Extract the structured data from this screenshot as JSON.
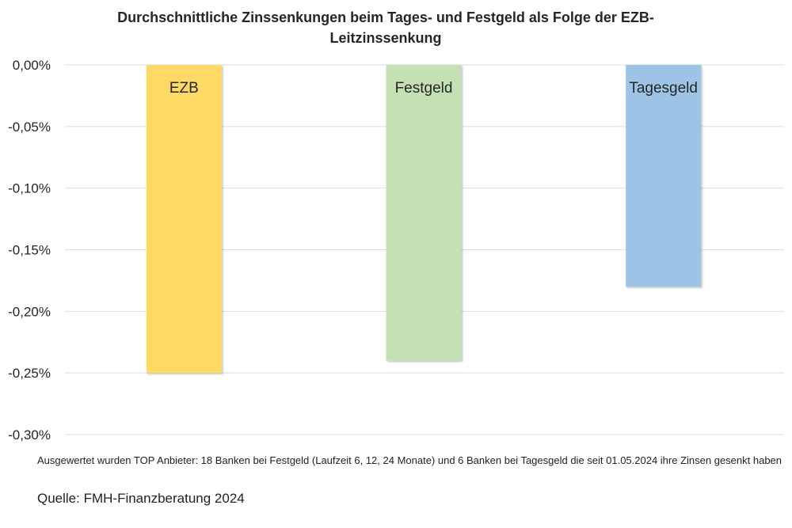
{
  "chart_data": {
    "type": "bar",
    "title_lines": [
      "Durchschnittliche Zinssenkungen beim Tages- und Festgeld als Folge der EZB-",
      "Leitzinssenkung"
    ],
    "categories": [
      "EZB",
      "Festgeld",
      "Tagesgeld"
    ],
    "values": [
      -0.25,
      -0.24,
      -0.18
    ],
    "colors": [
      "#FFD966",
      "#C5E0B4",
      "#9DC3E6"
    ],
    "ylim": [
      -0.3,
      0.0
    ],
    "yticks": [
      0.0,
      -0.05,
      -0.1,
      -0.15,
      -0.2,
      -0.25,
      -0.3
    ],
    "ytick_labels": [
      "0,00%",
      "-0,05%",
      "-0,10%",
      "-0,15%",
      "-0,20%",
      "-0,25%",
      "-0,30%"
    ],
    "grid": true,
    "legend": "none",
    "data_labels": "category names inside bars"
  },
  "footer": {
    "note": "Ausgewertet wurden TOP Anbieter: 18 Banken bei Festgeld (Laufzeit 6, 12, 24 Monate) und 6 Banken bei Tagesgeld die seit 01.05.2024 ihre Zinsen gesenkt haben",
    "source": "Quelle: FMH-Finanzberatung 2024"
  }
}
